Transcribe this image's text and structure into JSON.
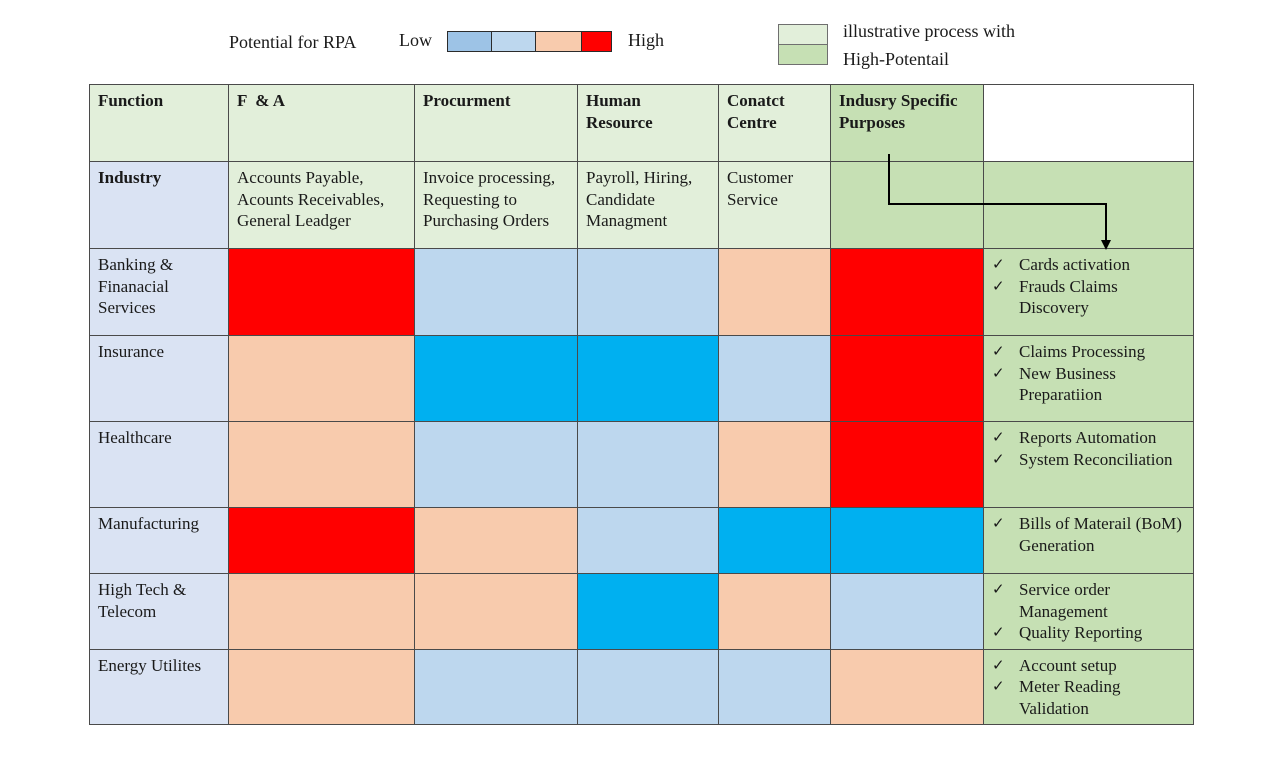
{
  "legend": {
    "title": "Potential for RPA",
    "low_label": "Low",
    "high_label": "High",
    "scale_colors": [
      "#9dc3e6",
      "#bdd7ee",
      "#f8cbad",
      "#ff0000"
    ],
    "key_line1": "illustrative process with",
    "key_line2": "High-Potentail",
    "key_colors": [
      "#e2efda",
      "#c6e0b4"
    ]
  },
  "colors": {
    "level_1": "#00b0f0",
    "level_2": "#bdd7ee",
    "level_3": "#f8cbad",
    "level_4": "#ff0000"
  },
  "chart_data": {
    "type": "heatmap",
    "title": "Potential for RPA",
    "scale": [
      "Low",
      "High"
    ],
    "row_header": "Function",
    "subheader_label": "Industry",
    "columns": [
      {
        "name": "F  & A",
        "processes": "Accounts Payable, Acounts Receivables, General Leadger"
      },
      {
        "name": "Procurment",
        "processes": "Invoice processing, Requesting to Purchasing Orders"
      },
      {
        "name": "Human Resource",
        "processes": "Payroll, Hiring, Candidate Managment"
      },
      {
        "name": "Conatct Centre",
        "processes": "Customer Service"
      },
      {
        "name": "Indusry Specific Purposes",
        "processes": ""
      }
    ],
    "rows": [
      {
        "industry": "Banking & Finanacial Services",
        "levels": [
          4,
          2,
          2,
          3,
          4
        ],
        "processes": [
          "Cards activation",
          "Frauds Claims Discovery"
        ]
      },
      {
        "industry": "Insurance",
        "levels": [
          3,
          1,
          1,
          2,
          4
        ],
        "processes": [
          "Claims Processing",
          "New Business Preparatiion"
        ]
      },
      {
        "industry": "Healthcare",
        "levels": [
          3,
          2,
          2,
          3,
          4
        ],
        "processes": [
          "Reports Automation",
          "System Reconciliation"
        ]
      },
      {
        "industry": "Manufacturing",
        "levels": [
          4,
          3,
          2,
          1,
          1
        ],
        "processes": [
          "Bills of Materail (BoM) Generation"
        ]
      },
      {
        "industry": "High Tech & Telecom",
        "levels": [
          3,
          3,
          1,
          3,
          2
        ],
        "processes": [
          "Service order Management",
          "Quality Reporting"
        ]
      },
      {
        "industry": "Energy Utilites",
        "levels": [
          3,
          2,
          2,
          2,
          3
        ],
        "processes": [
          "Account setup",
          "Meter Reading Validation"
        ]
      }
    ]
  }
}
